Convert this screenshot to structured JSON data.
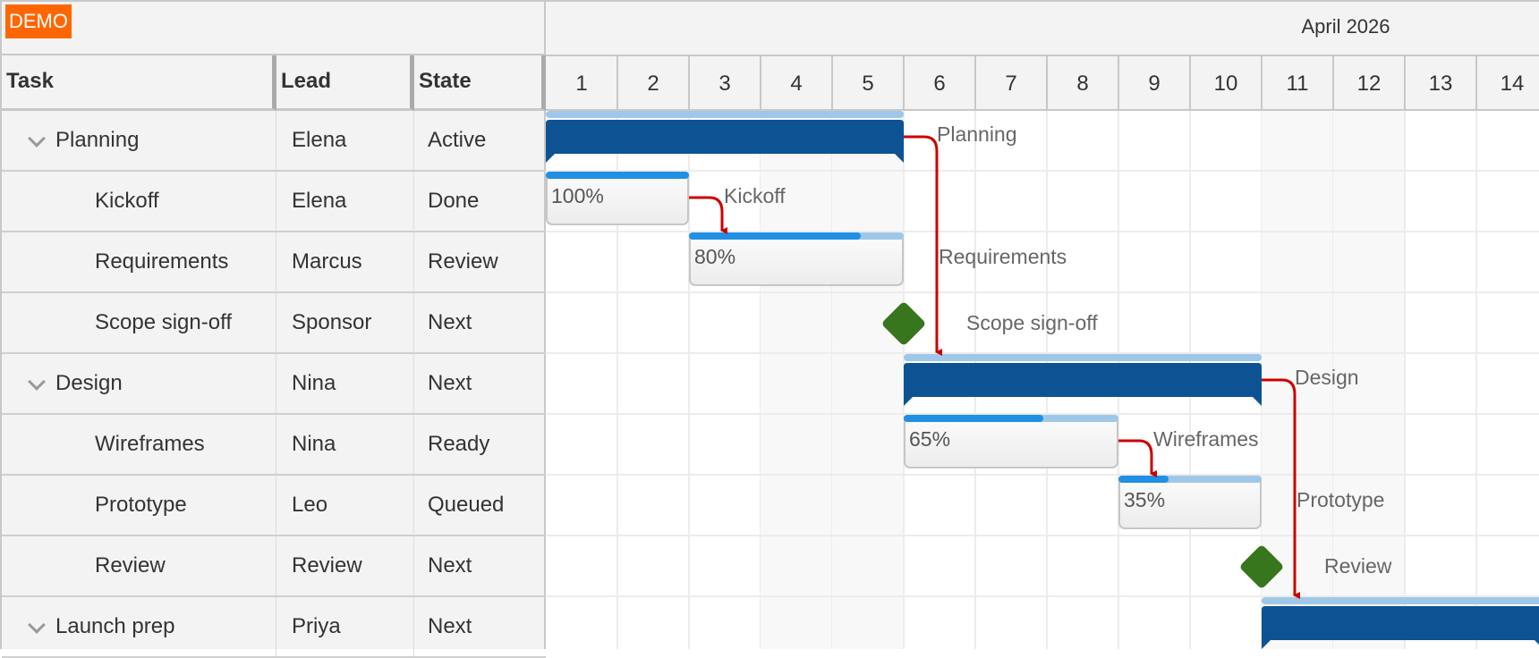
{
  "badge": "DEMO",
  "month": "April 2026",
  "columns": [
    "Task",
    "Lead",
    "State"
  ],
  "days": [
    "1",
    "2",
    "3",
    "4",
    "5",
    "6",
    "7",
    "8",
    "9",
    "10",
    "11",
    "12",
    "13",
    "14"
  ],
  "weekend_days": [
    4,
    5,
    11,
    12
  ],
  "rows": [
    {
      "task": "Planning",
      "lead": "Elena",
      "state": "Active",
      "type": "summary",
      "start": 1,
      "end": 6,
      "expanded": true
    },
    {
      "task": "Kickoff",
      "lead": "Elena",
      "state": "Done",
      "type": "task",
      "start": 1,
      "end": 3,
      "progress": 100,
      "progress_label": "100%"
    },
    {
      "task": "Requirements",
      "lead": "Marcus",
      "state": "Review",
      "type": "task",
      "start": 3,
      "end": 6,
      "progress": 80,
      "progress_label": "80%"
    },
    {
      "task": "Scope sign-off",
      "lead": "Sponsor",
      "state": "Next",
      "type": "milestone",
      "start": 6
    },
    {
      "task": "Design",
      "lead": "Nina",
      "state": "Next",
      "type": "summary",
      "start": 6,
      "end": 11,
      "expanded": true
    },
    {
      "task": "Wireframes",
      "lead": "Nina",
      "state": "Ready",
      "type": "task",
      "start": 6,
      "end": 9,
      "progress": 65,
      "progress_label": "65%"
    },
    {
      "task": "Prototype",
      "lead": "Leo",
      "state": "Queued",
      "type": "task",
      "start": 9,
      "end": 11,
      "progress": 35,
      "progress_label": "35%"
    },
    {
      "task": "Review",
      "lead": "Review",
      "state": "Next",
      "type": "milestone",
      "start": 11
    },
    {
      "task": "Launch prep",
      "lead": "Priya",
      "state": "Next",
      "type": "summary",
      "start": 11,
      "end": 15,
      "expanded": true
    }
  ],
  "dependencies": [
    [
      0,
      4
    ],
    [
      1,
      2
    ],
    [
      4,
      8
    ],
    [
      5,
      6
    ]
  ],
  "colors": {
    "summary": "#0d5394",
    "summary_top": "#9fc8e8",
    "progress": "#218fe3",
    "milestone": "#38761d",
    "dependency": "#cc0000",
    "badge": "#ff6600"
  }
}
